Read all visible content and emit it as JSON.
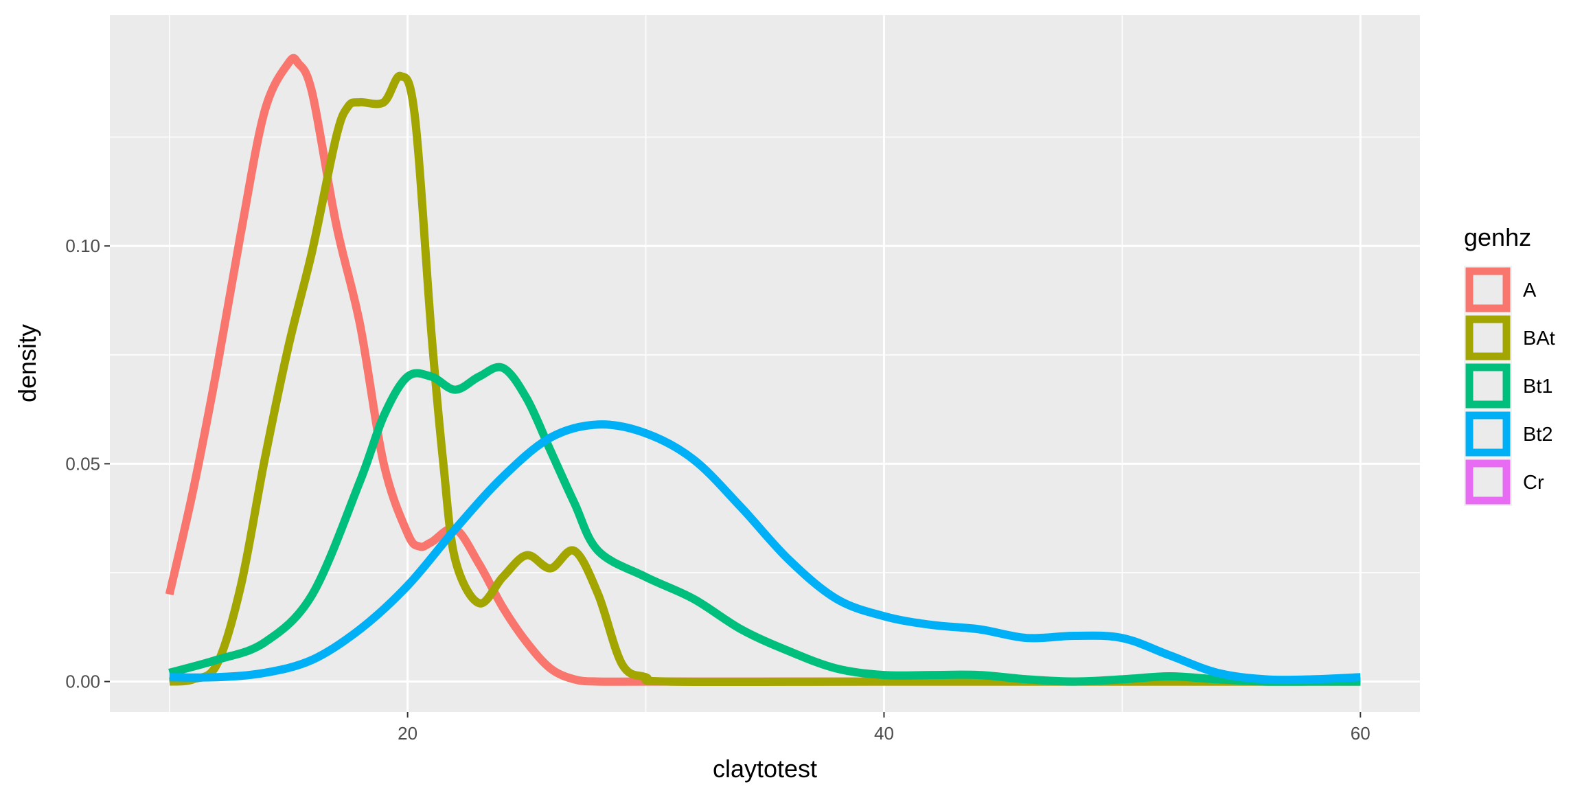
{
  "chart_data": {
    "type": "line",
    "subtype": "density",
    "xlabel": "claytotest",
    "ylabel": "density",
    "xlim": [
      7.5,
      62.5
    ],
    "ylim": [
      -0.007,
      0.153
    ],
    "x_ticks": [
      20,
      40,
      60
    ],
    "x_tick_labels": [
      "20",
      "40",
      "60"
    ],
    "x_minor_ticks": [
      10,
      30,
      50
    ],
    "y_ticks": [
      0.0,
      0.05,
      0.1
    ],
    "y_tick_labels": [
      "0.00",
      "0.05",
      "0.10"
    ],
    "y_minor_ticks": [
      0.025,
      0.075,
      0.125
    ],
    "grid": true,
    "background": "#ebebeb",
    "legend": {
      "title": "genhz",
      "position": "right",
      "items": [
        "A",
        "BAt",
        "Bt1",
        "Bt2",
        "Cr"
      ]
    },
    "series": [
      {
        "name": "A",
        "color": "#F8766D",
        "x": [
          10,
          11,
          12,
          13,
          14,
          15,
          15.4,
          16,
          17,
          18,
          19,
          20,
          20.5,
          21,
          22,
          23,
          24,
          25,
          26,
          27,
          28,
          30,
          40,
          50,
          60
        ],
        "y": [
          0.02,
          0.044,
          0.072,
          0.103,
          0.131,
          0.142,
          0.142,
          0.135,
          0.105,
          0.082,
          0.05,
          0.034,
          0.031,
          0.032,
          0.035,
          0.027,
          0.017,
          0.009,
          0.003,
          0.0005,
          0.0,
          0.0,
          0.0,
          0.0,
          0.0
        ]
      },
      {
        "name": "BAt",
        "color": "#A3A500",
        "x": [
          10,
          11,
          12,
          13,
          14,
          15,
          16,
          17,
          17.5,
          18,
          19,
          19.7,
          20.3,
          21,
          21.5,
          22,
          23,
          24,
          25,
          26,
          27,
          28,
          29,
          30,
          31,
          40,
          50,
          60
        ],
        "y": [
          0.0,
          0.0005,
          0.004,
          0.022,
          0.051,
          0.077,
          0.099,
          0.125,
          0.132,
          0.133,
          0.133,
          0.139,
          0.13,
          0.08,
          0.05,
          0.028,
          0.018,
          0.024,
          0.029,
          0.026,
          0.03,
          0.02,
          0.004,
          0.001,
          0.0,
          0.0,
          0.0,
          0.0
        ]
      },
      {
        "name": "Bt1",
        "color": "#00BF7D",
        "x": [
          10,
          12,
          14,
          16,
          18,
          19,
          20,
          21,
          22,
          23,
          24,
          25,
          26,
          27,
          28,
          30,
          32,
          34,
          36,
          38,
          40,
          42,
          44,
          46,
          48,
          50,
          52,
          54,
          56,
          58,
          60
        ],
        "y": [
          0.002,
          0.005,
          0.009,
          0.02,
          0.046,
          0.061,
          0.07,
          0.07,
          0.067,
          0.07,
          0.072,
          0.065,
          0.053,
          0.041,
          0.03,
          0.024,
          0.019,
          0.012,
          0.007,
          0.003,
          0.0015,
          0.0015,
          0.0015,
          0.0005,
          0.0,
          0.0005,
          0.0012,
          0.0005,
          0.0,
          0.0,
          0.0
        ]
      },
      {
        "name": "Bt2",
        "color": "#00B0F6",
        "x": [
          10,
          12,
          14,
          16,
          18,
          20,
          22,
          24,
          26,
          28,
          30,
          32,
          34,
          36,
          38,
          40,
          42,
          44,
          46,
          48,
          50,
          52,
          54,
          56,
          58,
          60
        ],
        "y": [
          0.001,
          0.001,
          0.002,
          0.005,
          0.012,
          0.022,
          0.035,
          0.047,
          0.056,
          0.059,
          0.057,
          0.051,
          0.04,
          0.028,
          0.019,
          0.015,
          0.013,
          0.012,
          0.01,
          0.0105,
          0.01,
          0.006,
          0.002,
          0.0005,
          0.0005,
          0.001
        ]
      },
      {
        "name": "Cr",
        "color": "#E76BF3",
        "x": [],
        "y": []
      }
    ]
  }
}
